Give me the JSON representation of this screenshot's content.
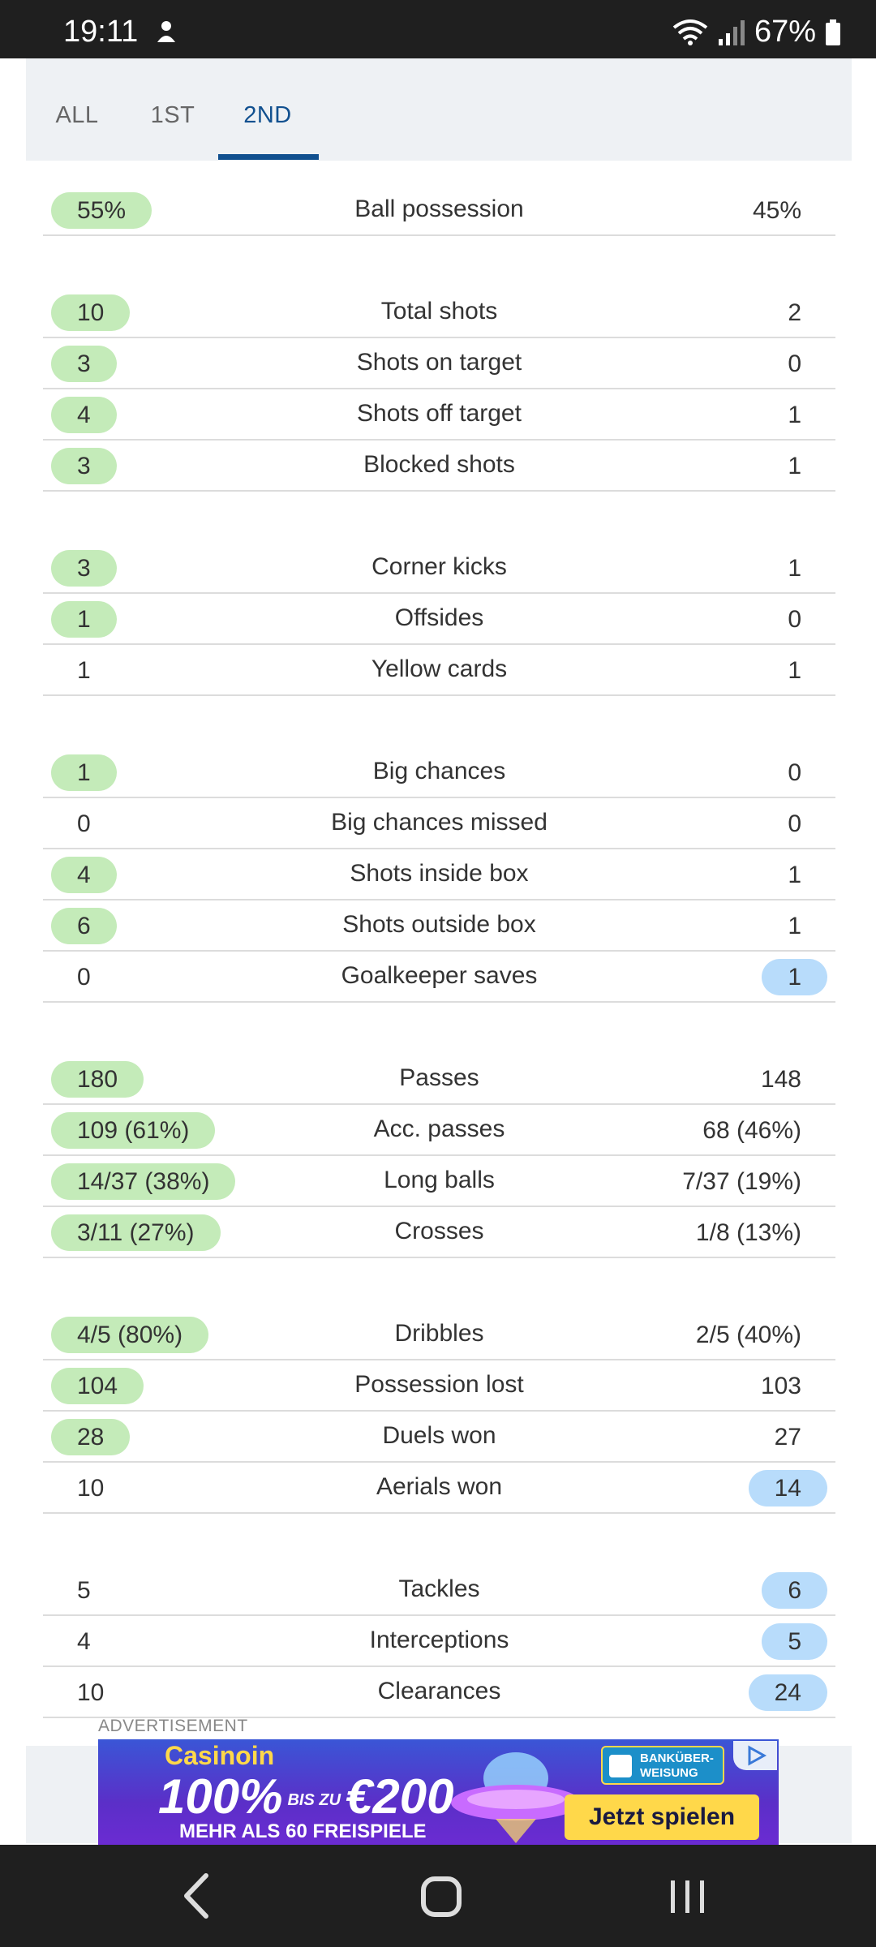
{
  "status_bar": {
    "time": "19:11",
    "battery": "67%"
  },
  "tabs": [
    {
      "label": "ALL",
      "active": false
    },
    {
      "label": "1ST",
      "active": false
    },
    {
      "label": "2ND",
      "active": true
    }
  ],
  "groups": [
    [
      {
        "label": "Ball possession",
        "home": "55%",
        "away": "45%",
        "highlight": "home"
      }
    ],
    [
      {
        "label": "Total shots",
        "home": "10",
        "away": "2",
        "highlight": "home"
      },
      {
        "label": "Shots on target",
        "home": "3",
        "away": "0",
        "highlight": "home"
      },
      {
        "label": "Shots off target",
        "home": "4",
        "away": "1",
        "highlight": "home"
      },
      {
        "label": "Blocked shots",
        "home": "3",
        "away": "1",
        "highlight": "home"
      }
    ],
    [
      {
        "label": "Corner kicks",
        "home": "3",
        "away": "1",
        "highlight": "home"
      },
      {
        "label": "Offsides",
        "home": "1",
        "away": "0",
        "highlight": "home"
      },
      {
        "label": "Yellow cards",
        "home": "1",
        "away": "1",
        "highlight": "none"
      }
    ],
    [
      {
        "label": "Big chances",
        "home": "1",
        "away": "0",
        "highlight": "home"
      },
      {
        "label": "Big chances missed",
        "home": "0",
        "away": "0",
        "highlight": "none"
      },
      {
        "label": "Shots inside box",
        "home": "4",
        "away": "1",
        "highlight": "home"
      },
      {
        "label": "Shots outside box",
        "home": "6",
        "away": "1",
        "highlight": "home"
      },
      {
        "label": "Goalkeeper saves",
        "home": "0",
        "away": "1",
        "highlight": "away"
      }
    ],
    [
      {
        "label": "Passes",
        "home": "180",
        "away": "148",
        "highlight": "home"
      },
      {
        "label": "Acc. passes",
        "home": "109 (61%)",
        "away": "68 (46%)",
        "highlight": "home"
      },
      {
        "label": "Long balls",
        "home": "14/37 (38%)",
        "away": "7/37 (19%)",
        "highlight": "home"
      },
      {
        "label": "Crosses",
        "home": "3/11 (27%)",
        "away": "1/8 (13%)",
        "highlight": "home"
      }
    ],
    [
      {
        "label": "Dribbles",
        "home": "4/5 (80%)",
        "away": "2/5 (40%)",
        "highlight": "home"
      },
      {
        "label": "Possession lost",
        "home": "104",
        "away": "103",
        "highlight": "home"
      },
      {
        "label": "Duels won",
        "home": "28",
        "away": "27",
        "highlight": "home"
      },
      {
        "label": "Aerials won",
        "home": "10",
        "away": "14",
        "highlight": "away"
      }
    ],
    [
      {
        "label": "Tackles",
        "home": "5",
        "away": "6",
        "highlight": "away"
      },
      {
        "label": "Interceptions",
        "home": "4",
        "away": "5",
        "highlight": "away"
      },
      {
        "label": "Clearances",
        "home": "10",
        "away": "24",
        "highlight": "away"
      }
    ]
  ],
  "ad": {
    "label": "ADVERTISEMENT",
    "brand": "Casinoin",
    "bonus_main": "100%",
    "bonus_small": "BIS ZU",
    "bonus_amount": "€200",
    "free_spins": "MEHR ALS 60 FREISPIELE",
    "bank_transfer": "BANKÜBER- WEISUNG",
    "cta": "Jetzt spielen"
  },
  "colors": {
    "home_highlight": "#c4ebb9",
    "away_highlight": "#b8dcfb",
    "accent": "#11508f"
  },
  "icons": [
    "wifi-icon",
    "signal-icon",
    "battery-icon",
    "back-icon",
    "home-icon",
    "recents-icon"
  ]
}
